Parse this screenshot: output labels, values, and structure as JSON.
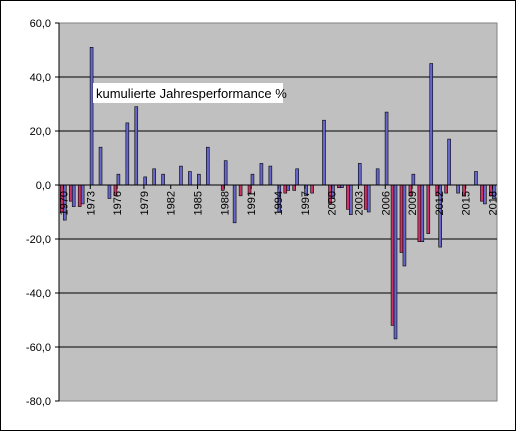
{
  "chart_data": {
    "type": "bar",
    "annotation": "kumulierte Jahresperformance %",
    "ylim": [
      -80,
      60
    ],
    "y_ticks": [
      "60,0",
      "40,0",
      "20,0",
      "0,0",
      "-20,0",
      "-40,0",
      "-60,0",
      "-80,0"
    ],
    "x_tick_labels": [
      "1970",
      "1973",
      "1976",
      "1979",
      "1982",
      "1985",
      "1988",
      "1991",
      "1994",
      "1997",
      "2000",
      "2003",
      "2006",
      "2009",
      "2012",
      "2015",
      "2018"
    ],
    "grid": "horizontal",
    "plot_background": "#c0c0c0",
    "series": [
      {
        "color": "#cc3366",
        "x": [
          1970,
          1971,
          1972,
          1973,
          1974,
          1975,
          1976,
          1977,
          1978,
          1979,
          1980,
          1981,
          1982,
          1983,
          1984,
          1985,
          1986,
          1987,
          1988,
          1989,
          1990,
          1991,
          1992,
          1993,
          1994,
          1995,
          1996,
          1997,
          1998,
          1999,
          2000,
          2001,
          2002,
          2003,
          2004,
          2005,
          2006,
          2007,
          2008,
          2009,
          2010,
          2011,
          2012,
          2013,
          2014,
          2015,
          2016,
          2017,
          2018
        ],
        "values": [
          -10,
          -6,
          -8,
          0,
          0,
          0,
          -4,
          0,
          0,
          0,
          0,
          0,
          0,
          0,
          0,
          0,
          0,
          0,
          -2,
          0,
          -4,
          -3,
          0,
          0,
          0,
          -3,
          -2,
          0,
          -3,
          0,
          -7,
          -1,
          -9,
          0,
          -9,
          0,
          0,
          -52,
          -25,
          -4,
          -21,
          -18,
          -4,
          -3,
          0,
          -4,
          0,
          -6,
          -4
        ]
      },
      {
        "color": "#6666cc",
        "x": [
          1970,
          1971,
          1972,
          1973,
          1974,
          1975,
          1976,
          1977,
          1978,
          1979,
          1980,
          1981,
          1982,
          1983,
          1984,
          1985,
          1986,
          1987,
          1988,
          1989,
          1990,
          1991,
          1992,
          1993,
          1994,
          1995,
          1996,
          1997,
          1998,
          1999,
          2000,
          2001,
          2002,
          2003,
          2004,
          2005,
          2006,
          2007,
          2008,
          2009,
          2010,
          2011,
          2012,
          2013,
          2014,
          2015,
          2016,
          2017,
          2018
        ],
        "values": [
          -13,
          -8,
          -7,
          51,
          14,
          -5,
          4,
          23,
          29,
          3,
          6,
          4,
          0,
          7,
          5,
          4,
          14,
          0,
          9,
          -14,
          0,
          4,
          8,
          7,
          -10,
          -2,
          6,
          -4,
          0,
          24,
          -5,
          -1,
          -11,
          8,
          -10,
          6,
          27,
          -57,
          -30,
          4,
          -21,
          45,
          -23,
          17,
          -3,
          0,
          5,
          -7,
          -5
        ]
      }
    ]
  }
}
